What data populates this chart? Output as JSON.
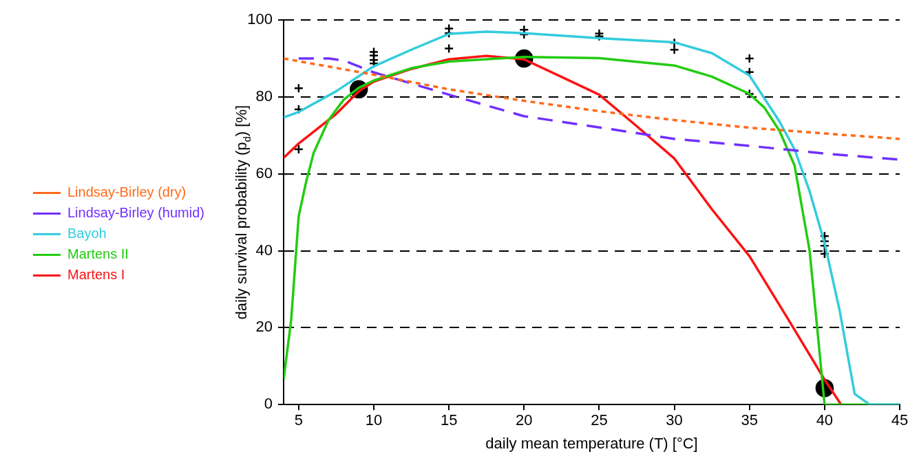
{
  "chart_data": {
    "type": "line",
    "xlabel": "daily mean temperature (T) [°C]",
    "ylabel": "daily survival probability (p$_{d}$) [%]",
    "xlim": [
      4,
      45
    ],
    "xticks": [
      5,
      10,
      15,
      20,
      25,
      30,
      35,
      40,
      45
    ],
    "ylim": [
      0,
      100
    ],
    "yticks": [
      0,
      20,
      40,
      60,
      80,
      100
    ],
    "grid": "y",
    "legend": "left",
    "marker": "none",
    "series": [
      {
        "name": "Lindsay-Birley (dry)",
        "color": "#ff6a1a",
        "line_style": "dotted",
        "x": [
          4,
          10,
          15,
          20,
          25,
          30,
          35,
          40,
          45
        ],
        "values": [
          90,
          85.8,
          82,
          79,
          76.3,
          74,
          72,
          70.5,
          69.1
        ]
      },
      {
        "name": "Lindsay-Birley (humid)",
        "color": "#7030ff",
        "line_style": "dashed",
        "x": [
          5,
          7,
          8,
          10,
          15,
          20,
          25,
          30,
          35,
          40,
          45
        ],
        "values": [
          90,
          90,
          89.5,
          86.4,
          80.6,
          75,
          72.1,
          69.1,
          67.3,
          65.3,
          63.7
        ]
      },
      {
        "name": "Bayoh",
        "color": "#33ccdd",
        "line_style": "solid",
        "x": [
          4,
          5,
          7.5,
          10,
          12.5,
          15,
          17.5,
          20,
          25,
          30,
          32.5,
          35,
          36,
          37,
          38,
          39,
          40,
          41,
          42,
          43,
          45
        ],
        "values": [
          74.7,
          76.1,
          81.5,
          88,
          92.3,
          96.4,
          97,
          96.6,
          95.3,
          94.2,
          91.4,
          85.6,
          79.6,
          73.6,
          66.4,
          55.5,
          42,
          24.5,
          2.8,
          0,
          0
        ]
      },
      {
        "name": "Martens II",
        "color": "#22cc11",
        "line_style": "solid",
        "x": [
          4,
          4.5,
          5,
          5.5,
          6,
          7,
          8,
          9,
          10,
          12.5,
          15,
          20,
          25,
          30,
          32.5,
          35,
          36,
          37,
          38,
          39,
          39.5,
          39.9,
          40,
          45
        ],
        "values": [
          6.6,
          22,
          49,
          58,
          65.5,
          74.1,
          79.3,
          82.4,
          84.3,
          87.5,
          89.2,
          90.4,
          90.1,
          88.2,
          85.3,
          80.8,
          77.2,
          71.2,
          62.2,
          40.1,
          20.3,
          4,
          0,
          0
        ]
      },
      {
        "name": "Martens I",
        "color": "#ff1111",
        "line_style": "solid",
        "x": [
          4,
          5,
          7.5,
          9,
          10,
          12.5,
          15,
          17.5,
          20,
          22.5,
          25,
          27.5,
          30,
          32.5,
          35,
          37.5,
          40,
          41.1
        ],
        "values": [
          64.2,
          67.9,
          75.6,
          81.5,
          84,
          87.3,
          89.8,
          90.7,
          89.8,
          85.2,
          80.6,
          72.4,
          64,
          50.8,
          38.6,
          22.7,
          6.5,
          0
        ]
      },
      {
        "type": "scatter",
        "marker": "cross",
        "color": "#000000",
        "x": [
          5,
          5,
          5,
          10,
          10,
          10,
          10,
          15,
          15,
          15,
          20,
          20,
          25,
          25,
          30,
          30,
          35,
          35,
          35,
          40,
          40,
          40,
          40
        ],
        "values": [
          82.3,
          76.8,
          66.4,
          91.7,
          90.8,
          89.6,
          88.7,
          97.8,
          96.6,
          92.6,
          97.5,
          96.3,
          96.5,
          95.8,
          94.1,
          92.3,
          90,
          86.5,
          80.8,
          43.8,
          42.5,
          41.3,
          39.2
        ]
      },
      {
        "type": "scatter",
        "marker": "circle",
        "color": "#000000",
        "x": [
          9,
          20,
          40
        ],
        "values": [
          82,
          90,
          4.3
        ]
      }
    ]
  }
}
